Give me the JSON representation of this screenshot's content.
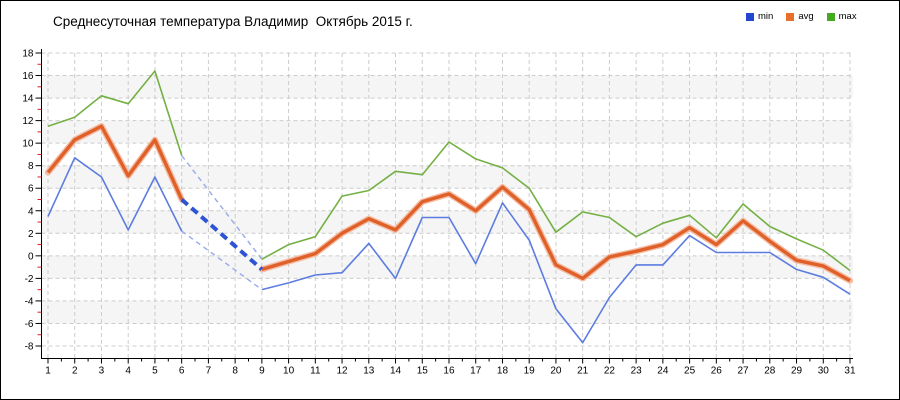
{
  "title": "Среднесуточная температура Владимир  Октябрь 2015 г.",
  "legend": {
    "items": [
      {
        "label": "min",
        "color": "#2248d1"
      },
      {
        "label": "avg",
        "color": "#e8702d"
      },
      {
        "label": "max",
        "color": "#44aa22"
      }
    ]
  },
  "chart_data": {
    "type": "line",
    "title": "Среднесуточная температура Владимир  Октябрь 2015 г.",
    "xlabel": "",
    "ylabel": "",
    "x": [
      1,
      2,
      3,
      4,
      5,
      6,
      7,
      8,
      9,
      10,
      11,
      12,
      13,
      14,
      15,
      16,
      17,
      18,
      19,
      20,
      21,
      22,
      23,
      24,
      25,
      26,
      27,
      28,
      29,
      30,
      31
    ],
    "xticks": [
      1,
      2,
      3,
      4,
      5,
      6,
      7,
      8,
      9,
      10,
      11,
      12,
      13,
      14,
      15,
      16,
      17,
      18,
      19,
      20,
      21,
      22,
      23,
      24,
      25,
      26,
      27,
      28,
      29,
      30,
      31
    ],
    "yticks": [
      18,
      16,
      14,
      12,
      10,
      8,
      6,
      4,
      2,
      0,
      -2,
      -4,
      -6,
      -8
    ],
    "ylim": [
      -8,
      18
    ],
    "grid": true,
    "legend_position": "top-right",
    "missing_days": [
      7,
      8
    ],
    "gap_note": "days 7-8 have no data; series are bridged day 6 to day 9 with blue dashed interpolation lines",
    "series": [
      {
        "name": "min",
        "color": "#5c7ce0",
        "values": [
          3.5,
          8.7,
          7.0,
          2.3,
          7.0,
          2.2,
          null,
          null,
          -3.0,
          -2.4,
          -1.7,
          -1.5,
          1.1,
          -2.0,
          3.4,
          3.4,
          -0.7,
          4.7,
          1.4,
          -4.7,
          -7.7,
          -3.7,
          -0.8,
          -0.8,
          1.8,
          0.3,
          0.3,
          0.3,
          -1.2,
          -1.9,
          -3.4
        ]
      },
      {
        "name": "avg",
        "color": "#e0602a",
        "values": [
          7.4,
          10.3,
          11.5,
          7.1,
          10.3,
          5.0,
          null,
          null,
          -1.2,
          -0.5,
          0.2,
          2.0,
          3.3,
          2.3,
          4.8,
          5.5,
          4.0,
          6.1,
          4.1,
          -0.8,
          -2.0,
          -0.1,
          0.4,
          1.0,
          2.5,
          1.0,
          3.1,
          1.3,
          -0.4,
          -0.9,
          -2.2
        ]
      },
      {
        "name": "max",
        "color": "#74b043",
        "values": [
          11.5,
          12.3,
          14.2,
          13.5,
          16.4,
          8.9,
          null,
          null,
          -0.3,
          1.0,
          1.7,
          5.3,
          5.8,
          7.5,
          7.2,
          10.1,
          8.6,
          7.8,
          6.0,
          2.1,
          3.9,
          3.4,
          1.7,
          2.9,
          3.6,
          1.6,
          4.6,
          2.6,
          1.5,
          0.5,
          -1.3
        ]
      }
    ],
    "colors": {
      "gap_dash_bold": "#2e54d3",
      "gap_dash_thin": "#97a9ec",
      "avg_halo": "#f4bca2",
      "gridline": "#cccccc",
      "band_alt": "#f5f5f5",
      "axis": "#000000",
      "minor_ytick": "#cc2222"
    }
  }
}
